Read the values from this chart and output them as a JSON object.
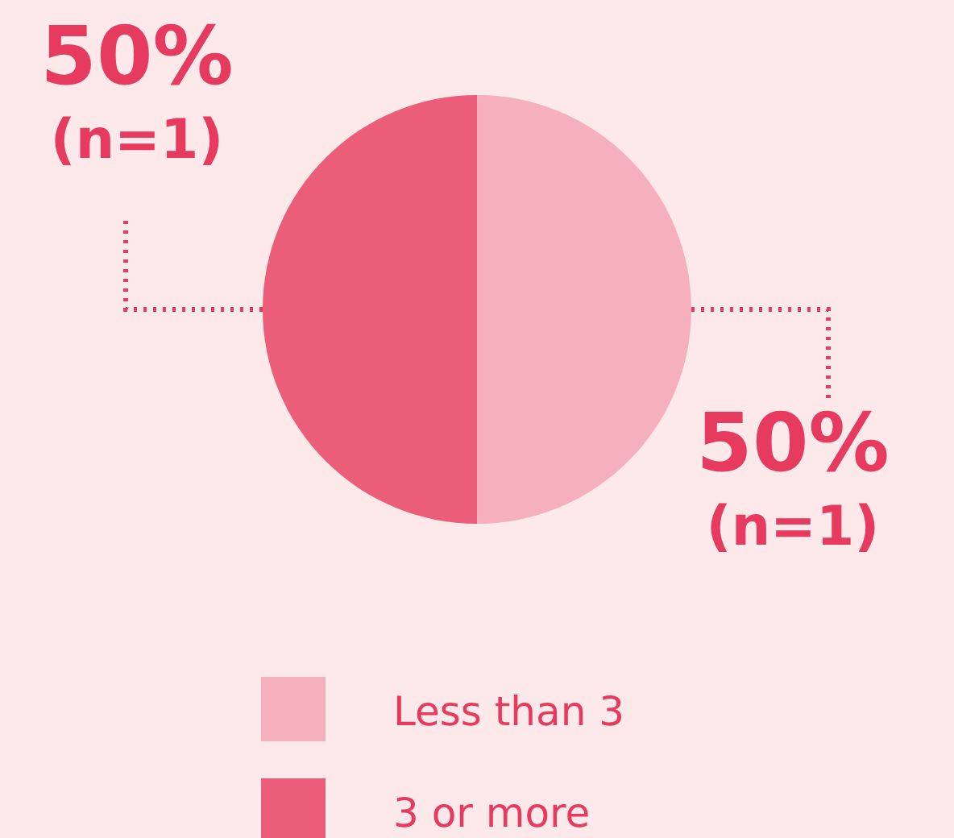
{
  "chart_data": {
    "type": "pie",
    "categories": [
      "Less than 3",
      "3 or more"
    ],
    "values": [
      50,
      50
    ],
    "colors": [
      "#f5afbd",
      "#eb5d79"
    ],
    "value_labels": [
      "50% (n=1)",
      "50% (n=1)"
    ],
    "legend": "bottom"
  }
}
